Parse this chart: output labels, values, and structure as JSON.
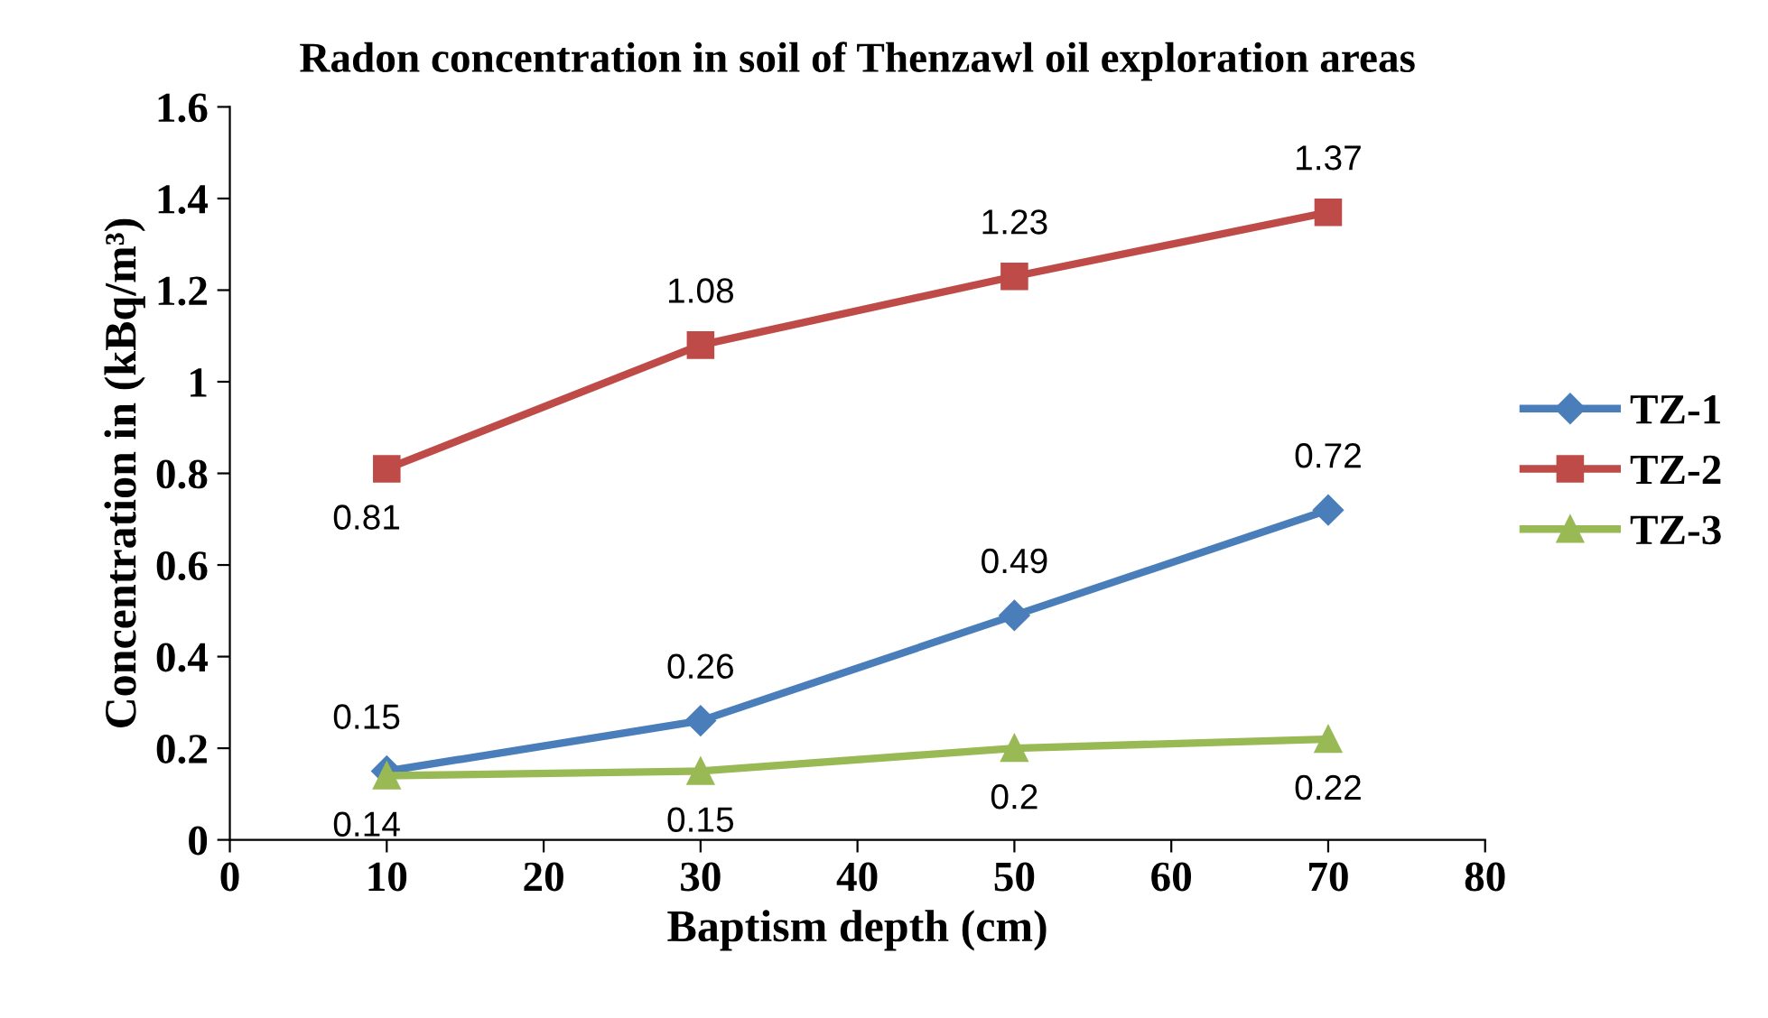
{
  "chart_data": {
    "type": "line",
    "title": "Radon concentration in soil of Thenzawl oil exploration areas",
    "xlabel": "Baptism depth (cm)",
    "ylabel": "Concentration in (kBq/m³)",
    "x": [
      10,
      30,
      50,
      70
    ],
    "series": [
      {
        "name": "TZ-1",
        "color": "#4a7ebb",
        "marker": "diamond",
        "values": [
          0.15,
          0.26,
          0.49,
          0.72
        ]
      },
      {
        "name": "TZ-2",
        "color": "#be4b48",
        "marker": "square",
        "values": [
          0.81,
          1.08,
          1.23,
          1.37
        ]
      },
      {
        "name": "TZ-3",
        "color": "#98b954",
        "marker": "triangle",
        "values": [
          0.14,
          0.15,
          0.2,
          0.22
        ]
      }
    ],
    "xlim": [
      0,
      80
    ],
    "xticks": [
      0,
      10,
      20,
      30,
      40,
      50,
      60,
      70,
      80
    ],
    "ylim": [
      0,
      1.6
    ],
    "yticks": [
      0,
      0.2,
      0.4,
      0.6,
      0.8,
      1,
      1.2,
      1.4,
      1.6
    ],
    "grid": false,
    "legend": "right",
    "data_labels": true
  }
}
